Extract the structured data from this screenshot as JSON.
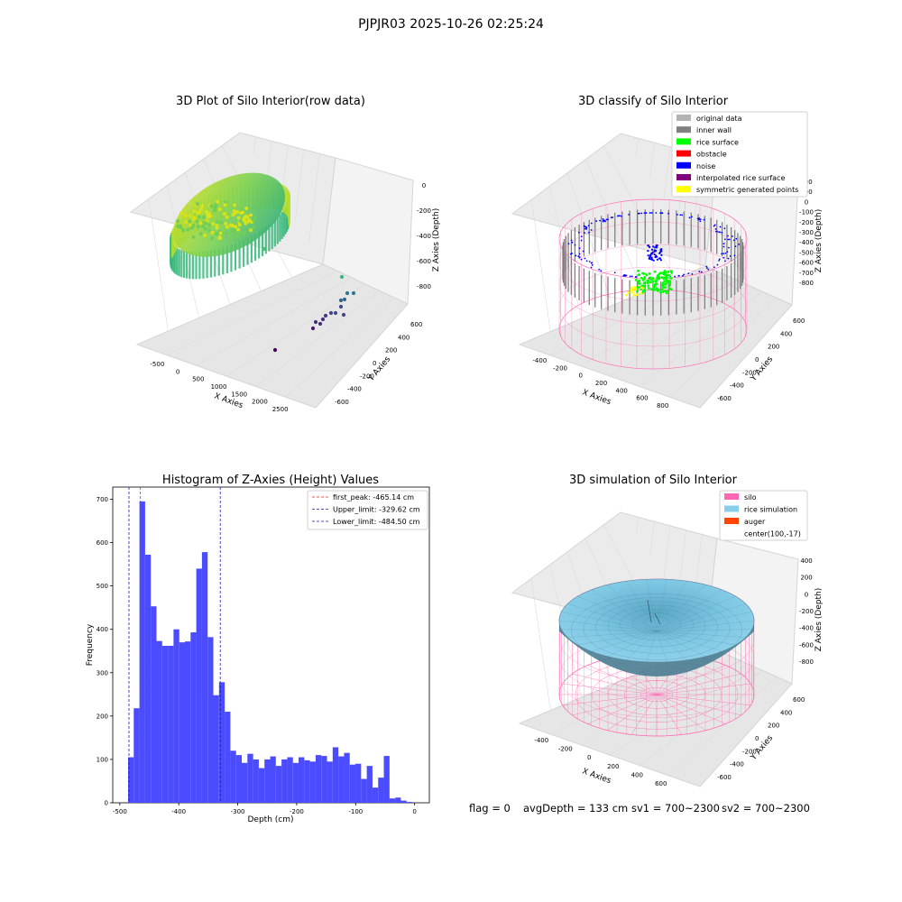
{
  "figure_title": "PJPJR03 2025-10-26 02:25:24",
  "footer": {
    "flag": "flag = 0",
    "avg_depth": "avgDepth = 133 cm",
    "sv1": "sv1 = 700~2300",
    "sv2": "sv2 = 700~2300"
  },
  "colors": {
    "histogram_bar": "#4b4bff",
    "first_peak": "#e8271f",
    "limits": "#1a1aa8",
    "pane": "#f2f2f2",
    "silo_wire": "#ff69b4",
    "rice_surface": "#7ec8e3",
    "inner_wall": "#808080",
    "noise": "#0000ff",
    "rice": "#00ff00",
    "symmetric": "#ffff00"
  },
  "chart_data": [
    {
      "type": "scatter",
      "title": "3D Plot of Silo Interior(row data)",
      "xlabel": "X Axies",
      "ylabel": "Y Axies",
      "zlabel": "Z Axies (Depth)",
      "x_ticks": [
        "-500",
        "0",
        "500",
        "1000",
        "1500",
        "2000",
        "2500"
      ],
      "y_ticks": [
        "-600",
        "-400",
        "-200",
        "0",
        "200",
        "400",
        "600"
      ],
      "z_ticks": [
        "-800",
        "-600",
        "-400",
        "-200",
        "0"
      ],
      "colormap": "viridis"
    },
    {
      "type": "scatter",
      "title": "3D classify of Silo Interior",
      "xlabel": "X Axies",
      "ylabel": "Y Axies",
      "zlabel": "Z Axies (Depth)",
      "x_ticks": [
        "-400",
        "-200",
        "0",
        "200",
        "400",
        "600",
        "800"
      ],
      "y_ticks": [
        "-600",
        "-400",
        "-200",
        "0",
        "200",
        "400",
        "600"
      ],
      "z_ticks": [
        "-800",
        "-700",
        "-600",
        "-500",
        "-400",
        "-300",
        "-200",
        "-100",
        "0",
        "100",
        "200"
      ],
      "legend": [
        {
          "label": "original data",
          "color": "#b3b3b3"
        },
        {
          "label": "inner wall",
          "color": "#808080"
        },
        {
          "label": "rice surface",
          "color": "#00ff00"
        },
        {
          "label": "obstacle",
          "color": "#ff0000"
        },
        {
          "label": "noise",
          "color": "#0000ff"
        },
        {
          "label": "interpolated rice surface",
          "color": "#800080"
        },
        {
          "label": "symmetric generated points",
          "color": "#ffff00"
        }
      ],
      "legend_position": "top-right"
    },
    {
      "type": "bar",
      "title": "Histogram of Z-Axies (Height) Values",
      "xlabel": "Depth (cm)",
      "ylabel": "Frequency",
      "xlim": [
        -512,
        25
      ],
      "ylim": [
        0,
        728
      ],
      "x_ticks": [
        -500,
        -400,
        -300,
        -200,
        -100,
        0
      ],
      "y_ticks": [
        0,
        100,
        200,
        300,
        400,
        500,
        600,
        700
      ],
      "bin_start": -486,
      "bin_width": 9.64,
      "values": [
        105,
        218,
        695,
        572,
        453,
        373,
        362,
        362,
        400,
        370,
        372,
        393,
        540,
        578,
        382,
        248,
        278,
        210,
        120,
        110,
        92,
        113,
        100,
        80,
        100,
        107,
        85,
        100,
        105,
        92,
        105,
        98,
        95,
        110,
        108,
        95,
        128,
        107,
        115,
        88,
        90,
        55,
        85,
        35,
        58,
        108,
        10,
        12,
        5,
        2
      ],
      "lines": [
        {
          "label": "first_peak: -465.14 cm",
          "x": -465.14,
          "color": "#e8271f"
        },
        {
          "label": "Upper_limit: -329.62 cm",
          "x": -329.62,
          "color": "#1a1aa8"
        },
        {
          "label": "Lower_limit: -484.50 cm",
          "x": -484.5,
          "color": "#1a1aa8"
        }
      ],
      "legend_position": "top-right"
    },
    {
      "type": "area",
      "title": "3D simulation of Silo Interior",
      "xlabel": "X Axies",
      "ylabel": "Y Axies",
      "zlabel": "Z Axies (Depth)",
      "x_ticks": [
        "-400",
        "-200",
        "0",
        "200",
        "400",
        "600"
      ],
      "y_ticks": [
        "-600",
        "-400",
        "-200",
        "0",
        "200",
        "400",
        "600"
      ],
      "z_ticks": [
        "-800",
        "-600",
        "-400",
        "-200",
        "0",
        "200",
        "400"
      ],
      "legend": [
        {
          "label": "silo",
          "color": "#ff69b4"
        },
        {
          "label": "rice simulation",
          "color": "#87ceeb"
        },
        {
          "label": "auger",
          "color": "#ff4500"
        },
        {
          "label": "center(100,-17)",
          "color": ""
        }
      ],
      "legend_position": "top-right"
    }
  ]
}
